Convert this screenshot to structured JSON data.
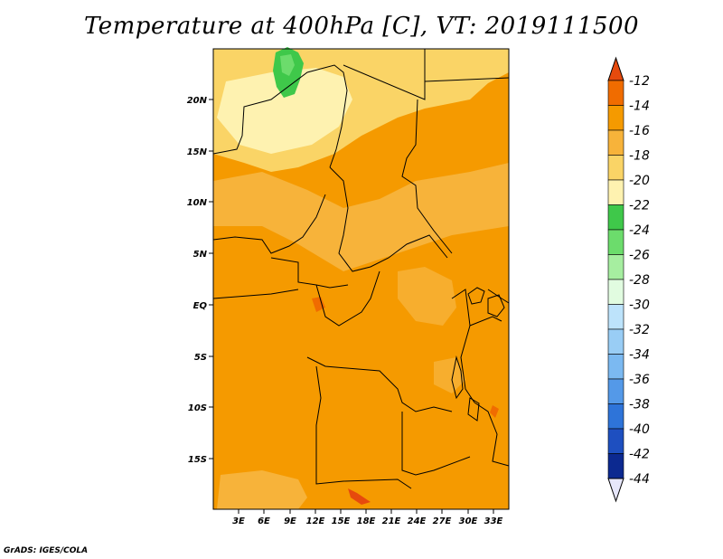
{
  "title": "Temperature at 400hPa [C], VT: 2019111500",
  "credit": "GrADS: IGES/COLA",
  "map": {
    "lon_ticks": [
      "3E",
      "6E",
      "9E",
      "12E",
      "15E",
      "18E",
      "21E",
      "24E",
      "27E",
      "30E",
      "33E"
    ],
    "lat_ticks": [
      "20N",
      "15N",
      "10N",
      "5N",
      "EQ",
      "5S",
      "10S",
      "15S"
    ]
  },
  "colorbar": {
    "labels": [
      "-12",
      "-14",
      "-16",
      "-18",
      "-20",
      "-22",
      "-24",
      "-26",
      "-28",
      "-30",
      "-32",
      "-34",
      "-36",
      "-38",
      "-40",
      "-42",
      "-44"
    ],
    "colors": [
      "#e64a0d",
      "#f06c00",
      "#f59a00",
      "#f7b33a",
      "#fad466",
      "#fef2b0",
      "#3fc84a",
      "#6cdc6c",
      "#a6eea0",
      "#e1fce0",
      "#bde3fb",
      "#99cdf5",
      "#7bb9f1",
      "#5499e8",
      "#2e74d9",
      "#1e4fc0",
      "#0c2990",
      "#0a0a6e"
    ],
    "top_triangle_color": "#e64a0d",
    "bottom_triangle_color": "#e6e6fa"
  }
}
